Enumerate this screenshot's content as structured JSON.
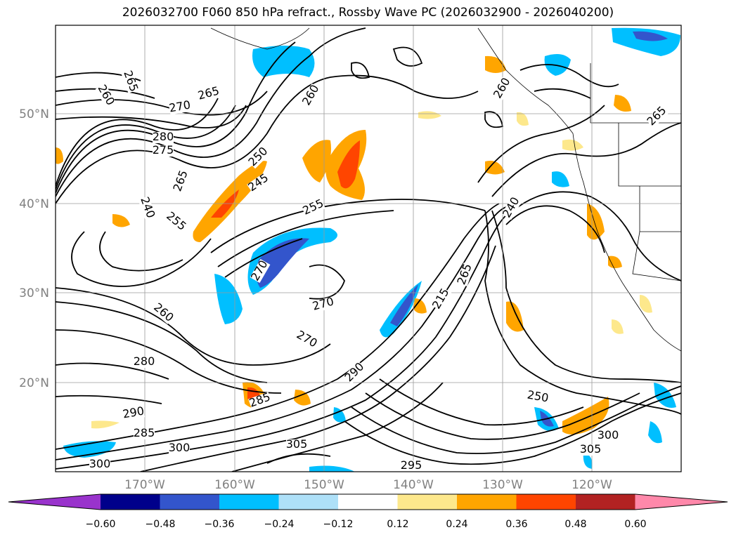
{
  "title": "2026032700 F060 850 hPa refract., Rossby Wave PC (2026032900 - 2026040200)",
  "map": {
    "lat_labels": [
      "50°N",
      "40°N",
      "30°N",
      "20°N"
    ],
    "lon_labels": [
      "170°W",
      "160°W",
      "150°W",
      "140°W",
      "130°W",
      "120°W"
    ],
    "contour_labels": [
      "265",
      "260",
      "265",
      "270",
      "260",
      "280",
      "275",
      "265",
      "250",
      "245",
      "240",
      "255",
      "255",
      "270",
      "260",
      "270",
      "270",
      "280",
      "290",
      "285",
      "285",
      "300",
      "305",
      "300",
      "295",
      "290",
      "215",
      "265",
      "240",
      "250",
      "300",
      "305",
      "265",
      "260"
    ]
  },
  "colorbar": {
    "ticks": [
      "−0.60",
      "−0.48",
      "−0.36",
      "−0.24",
      "−0.12",
      "0.12",
      "0.24",
      "0.36",
      "0.48",
      "0.60"
    ],
    "colors": [
      "#9933cc",
      "#00008b",
      "#3355cc",
      "#00bfff",
      "#aee0f8",
      "#ffffff",
      "#fde88c",
      "#ffa500",
      "#ff4500",
      "#b22222",
      "#ff88aa"
    ]
  }
}
